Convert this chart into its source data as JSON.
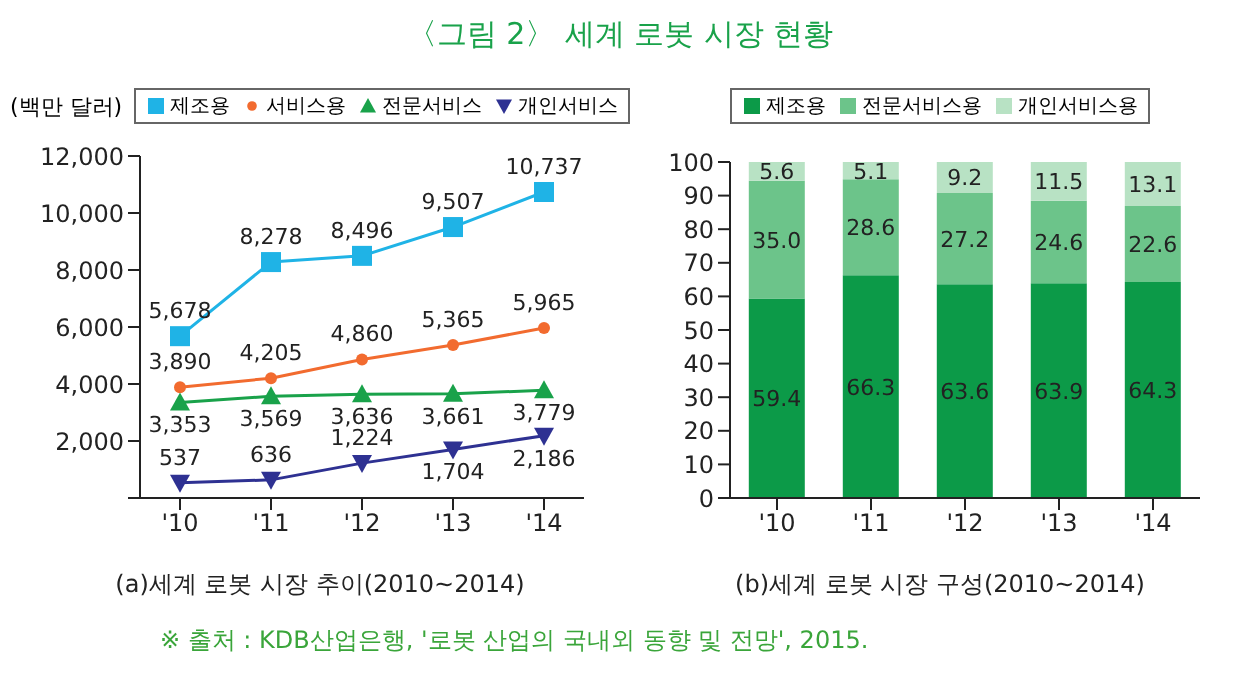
{
  "chart_data": [
    {
      "type": "line",
      "title": "〈그림 2〉 세계 로봇 시장 현황",
      "ylabel": "(백만 달러)",
      "categories": [
        "'10",
        "'11",
        "'12",
        "'13",
        "'14"
      ],
      "series": [
        {
          "name": "제조용",
          "color": "#1fb3e6",
          "marker": "square",
          "values": [
            5678,
            8278,
            8496,
            9507,
            10737
          ],
          "value_labels": [
            "5,678",
            "8,278",
            "8,496",
            "9,507",
            "10,737"
          ]
        },
        {
          "name": "서비스용",
          "color": "#f26b2f",
          "marker": "circle",
          "values": [
            3890,
            4205,
            4860,
            5365,
            5965
          ],
          "value_labels": [
            "3,890",
            "4,205",
            "4,860",
            "5,365",
            "5,965"
          ]
        },
        {
          "name": "전문서비스",
          "color": "#19a24a",
          "marker": "triangle",
          "values": [
            3353,
            3569,
            3636,
            3661,
            3779
          ],
          "value_labels": [
            "3,353",
            "3,569",
            "3,636",
            "3,661",
            "3,779"
          ]
        },
        {
          "name": "개인서비스",
          "color": "#2e3192",
          "marker": "triangle-down",
          "values": [
            537,
            636,
            1224,
            1704,
            2186
          ],
          "value_labels": [
            "537",
            "636",
            "1,224",
            "1,704",
            "2,186"
          ]
        }
      ],
      "ylim": [
        0,
        12000
      ],
      "yticks": [
        {
          "value": 0,
          "label": null
        },
        {
          "value": 2000,
          "label": "2,000"
        },
        {
          "value": 4000,
          "label": "4,000"
        },
        {
          "value": 6000,
          "label": "6,000"
        },
        {
          "value": 8000,
          "label": "8,000"
        },
        {
          "value": 10000,
          "label": "10,000"
        },
        {
          "value": 12000,
          "label": "12,000"
        }
      ],
      "legend": "top",
      "line_style": "solid",
      "annotations": [
        "(a)세계 로봇 시장 추이(2010~2014)",
        "※ 출처 : KDB산업은행, '로봇 산업의 국내외 동향 및 전망', 2015."
      ]
    },
    {
      "type": "bar",
      "stacked": true,
      "categories": [
        "'10",
        "'11",
        "'12",
        "'13",
        "'14"
      ],
      "series": [
        {
          "name": "제조용",
          "color": "#0c9a48",
          "values": [
            59.4,
            66.3,
            63.6,
            63.9,
            64.3
          ],
          "value_labels": [
            "59.4",
            "66.3",
            "63.6",
            "63.9",
            "64.3"
          ]
        },
        {
          "name": "전문서비스용",
          "color": "#6cc48a",
          "values": [
            35.0,
            28.6,
            27.2,
            24.6,
            22.6
          ],
          "value_labels": [
            "35.0",
            "28.6",
            "27.2",
            "24.6",
            "22.6"
          ]
        },
        {
          "name": "개인서비스용",
          "color": "#b8e2c4",
          "values": [
            5.6,
            5.1,
            9.2,
            11.5,
            13.1
          ],
          "value_labels": [
            "5.6",
            "5.1",
            "9.2",
            "11.5",
            "13.1"
          ]
        }
      ],
      "ylim": [
        0,
        100
      ],
      "yticks": [
        0,
        10,
        20,
        30,
        40,
        50,
        60,
        70,
        80,
        90,
        100
      ],
      "legend": "top",
      "annotations": [
        "(b)세계 로봇 시장 구성(2010~2014)"
      ]
    }
  ]
}
